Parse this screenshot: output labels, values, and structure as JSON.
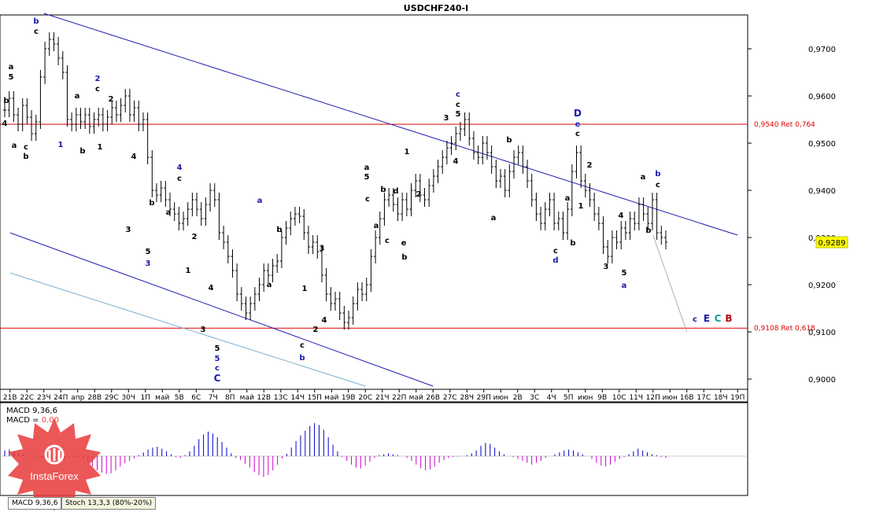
{
  "chart_data": {
    "type": "candlestick",
    "title": "USDCHF240-I",
    "price_axis": {
      "ticks": [
        "0,9700",
        "0,9600",
        "0,9500",
        "0,9400",
        "0,9300",
        "0,9200",
        "0,9100",
        "0,9000"
      ],
      "range": [
        0.898,
        0.977
      ],
      "current_price": "0,9289"
    },
    "time_axis": {
      "labels": [
        "21В",
        "22С",
        "23Ч",
        "24П",
        "апр",
        "28В",
        "29С",
        "30Ч",
        "1П",
        "май",
        "5В",
        "6С",
        "7Ч",
        "8П",
        "май",
        "12В",
        "13С",
        "14Ч",
        "15П",
        "май",
        "19В",
        "20С",
        "21Ч",
        "22П",
        "май",
        "26В",
        "27С",
        "28Ч",
        "29П",
        "июн",
        "2В",
        "3С",
        "4Ч",
        "5П",
        "июн",
        "9В",
        "10С",
        "11Ч",
        "12П",
        "июн",
        "16В",
        "17С",
        "18Ч",
        "19П"
      ]
    },
    "levels": [
      {
        "price": 0.954,
        "label": "0,9540 Ret 0,764",
        "color": "#dd0000"
      },
      {
        "price": 0.9108,
        "label": "0,9108 Ret 0,618",
        "color": "#dd0000"
      }
    ],
    "series": [
      {
        "values": [
          0.957,
          0.9595,
          0.956,
          0.954,
          0.958,
          0.9555,
          0.952,
          0.9545,
          0.964,
          0.97,
          0.972,
          0.971,
          0.968,
          0.965,
          0.955,
          0.954,
          0.956,
          0.9545,
          0.956,
          0.9535,
          0.955,
          0.956,
          0.954,
          0.9555,
          0.9575,
          0.956,
          0.958,
          0.96,
          0.956,
          0.9575,
          0.954,
          0.955,
          0.947,
          0.94,
          0.939,
          0.9405,
          0.938,
          0.936,
          0.935,
          0.933,
          0.934,
          0.936,
          0.938,
          0.936,
          0.934,
          0.937,
          0.94,
          0.938,
          0.931,
          0.929,
          0.926,
          0.923,
          0.918,
          0.916,
          0.914,
          0.916,
          0.918,
          0.92,
          0.923,
          0.922,
          0.924,
          0.925,
          0.93,
          0.932,
          0.934,
          0.935,
          0.9345,
          0.931,
          0.928,
          0.929,
          0.927,
          0.922,
          0.918,
          0.916,
          0.917,
          0.914,
          0.912,
          0.913,
          0.916,
          0.919,
          0.918,
          0.92,
          0.926,
          0.93,
          0.934,
          0.938,
          0.939,
          0.937,
          0.935,
          0.938,
          0.936,
          0.94,
          0.942,
          0.939,
          0.938,
          0.941,
          0.943,
          0.945,
          0.947,
          0.949,
          0.95,
          0.952,
          0.953,
          0.955,
          0.951,
          0.948,
          0.947,
          0.95,
          0.948,
          0.945,
          0.942,
          0.943,
          0.94,
          0.944,
          0.947,
          0.948,
          0.945,
          0.942,
          0.938,
          0.935,
          0.933,
          0.936,
          0.938,
          0.933,
          0.934,
          0.931,
          0.936,
          0.944,
          0.948,
          0.942,
          0.94,
          0.938,
          0.935,
          0.933,
          0.928,
          0.926,
          0.93,
          0.929,
          0.932,
          0.931,
          0.934,
          0.933,
          0.937,
          0.935,
          0.933,
          0.938,
          0.931,
          0.93,
          0.929
        ]
      }
    ],
    "trend_lines": [
      {
        "name": "channel-upper",
        "from": [
          "23Ч",
          0.9775
        ],
        "to": [
          "19П",
          0.9305
        ],
        "color": "#2020b0"
      },
      {
        "name": "channel-lower",
        "from": [
          "21В",
          0.931
        ],
        "to": [
          "26В",
          0.8985
        ],
        "color": "#2020b0"
      },
      {
        "name": "channel-base",
        "from": [
          "21В",
          0.9225
        ],
        "to": [
          "20С",
          0.8985
        ],
        "color": "#7fb0d0"
      },
      {
        "name": "projection",
        "from": [
          "12П",
          0.9305
        ],
        "to": [
          "16В",
          0.91
        ],
        "color": "#b0b0b0"
      }
    ],
    "wave_labels": [
      {
        "text": "b",
        "x": 46,
        "y": 30,
        "color": "#1a1aa8"
      },
      {
        "text": "c",
        "x": 46,
        "y": 43,
        "color": "#000000"
      },
      {
        "text": "a",
        "x": 14,
        "y": 88,
        "color": "#000000"
      },
      {
        "text": "5",
        "x": 14,
        "y": 101,
        "color": "#000000"
      },
      {
        "text": "b",
        "x": 8,
        "y": 131,
        "color": "#000000"
      },
      {
        "text": "4",
        "x": 6,
        "y": 160,
        "color": "#000000"
      },
      {
        "text": "a",
        "x": 18,
        "y": 188,
        "color": "#000000"
      },
      {
        "text": "c",
        "x": 33,
        "y": 190,
        "color": "#000000"
      },
      {
        "text": "b",
        "x": 33,
        "y": 202,
        "color": "#000000"
      },
      {
        "text": "2",
        "x": 124,
        "y": 103,
        "color": "#1a1aa8"
      },
      {
        "text": "a",
        "x": 98,
        "y": 125,
        "color": "#000000"
      },
      {
        "text": "c",
        "x": 124,
        "y": 116,
        "color": "#000000"
      },
      {
        "text": "2",
        "x": 141,
        "y": 129,
        "color": "#000000"
      },
      {
        "text": "1",
        "x": 77,
        "y": 187,
        "color": "#1a1aa8"
      },
      {
        "text": "b",
        "x": 105,
        "y": 195,
        "color": "#000000"
      },
      {
        "text": "1",
        "x": 127,
        "y": 190,
        "color": "#000000"
      },
      {
        "text": "4",
        "x": 170,
        "y": 202,
        "color": "#000000"
      },
      {
        "text": "4",
        "x": 228,
        "y": 216,
        "color": "#1a1aa8"
      },
      {
        "text": "c",
        "x": 228,
        "y": 230,
        "color": "#000000"
      },
      {
        "text": "b",
        "x": 193,
        "y": 261,
        "color": "#000000"
      },
      {
        "text": "a",
        "x": 214,
        "y": 273,
        "color": "#000000"
      },
      {
        "text": "3",
        "x": 163,
        "y": 295,
        "color": "#000000"
      },
      {
        "text": "5",
        "x": 188,
        "y": 323,
        "color": "#000000"
      },
      {
        "text": "3",
        "x": 188,
        "y": 338,
        "color": "#1a1aa8"
      },
      {
        "text": "2",
        "x": 247,
        "y": 304,
        "color": "#000000"
      },
      {
        "text": "1",
        "x": 239,
        "y": 347,
        "color": "#000000"
      },
      {
        "text": "4",
        "x": 268,
        "y": 369,
        "color": "#000000"
      },
      {
        "text": "3",
        "x": 258,
        "y": 422,
        "color": "#000000"
      },
      {
        "text": "5",
        "x": 276,
        "y": 446,
        "color": "#000000"
      },
      {
        "text": "5",
        "x": 276,
        "y": 459,
        "color": "#1a1aa8"
      },
      {
        "text": "c",
        "x": 276,
        "y": 471,
        "color": "#1a1aa8"
      },
      {
        "text": "C",
        "x": 276,
        "y": 485,
        "color": "#1a1aa8"
      },
      {
        "text": "a",
        "x": 330,
        "y": 258,
        "color": "#1a1aa8"
      },
      {
        "text": "b",
        "x": 355,
        "y": 295,
        "color": "#000000"
      },
      {
        "text": "a",
        "x": 342,
        "y": 365,
        "color": "#000000"
      },
      {
        "text": "1",
        "x": 387,
        "y": 370,
        "color": "#000000"
      },
      {
        "text": "3",
        "x": 409,
        "y": 319,
        "color": "#000000"
      },
      {
        "text": "4",
        "x": 412,
        "y": 410,
        "color": "#000000"
      },
      {
        "text": "2",
        "x": 401,
        "y": 422,
        "color": "#000000"
      },
      {
        "text": "c",
        "x": 384,
        "y": 442,
        "color": "#000000"
      },
      {
        "text": "b",
        "x": 384,
        "y": 458,
        "color": "#1a1aa8"
      },
      {
        "text": "a",
        "x": 466,
        "y": 216,
        "color": "#000000"
      },
      {
        "text": "5",
        "x": 466,
        "y": 228,
        "color": "#000000"
      },
      {
        "text": "c",
        "x": 467,
        "y": 256,
        "color": "#000000"
      },
      {
        "text": "a",
        "x": 478,
        "y": 290,
        "color": "#000000"
      },
      {
        "text": "b",
        "x": 487,
        "y": 244,
        "color": "#000000"
      },
      {
        "text": "c",
        "x": 492,
        "y": 309,
        "color": "#000000"
      },
      {
        "text": "d",
        "x": 503,
        "y": 246,
        "color": "#000000"
      },
      {
        "text": "1",
        "x": 517,
        "y": 196,
        "color": "#000000"
      },
      {
        "text": "2",
        "x": 532,
        "y": 250,
        "color": "#000000"
      },
      {
        "text": "e",
        "x": 513,
        "y": 312,
        "color": "#000000"
      },
      {
        "text": "b",
        "x": 514,
        "y": 330,
        "color": "#000000"
      },
      {
        "text": "c",
        "x": 582,
        "y": 123,
        "color": "#1a1aa8"
      },
      {
        "text": "c",
        "x": 582,
        "y": 136,
        "color": "#000000"
      },
      {
        "text": "5",
        "x": 582,
        "y": 148,
        "color": "#000000"
      },
      {
        "text": "3",
        "x": 567,
        "y": 153,
        "color": "#000000"
      },
      {
        "text": "4",
        "x": 579,
        "y": 208,
        "color": "#000000"
      },
      {
        "text": "b",
        "x": 647,
        "y": 181,
        "color": "#000000"
      },
      {
        "text": "a",
        "x": 627,
        "y": 280,
        "color": "#000000"
      },
      {
        "text": "D",
        "x": 734,
        "y": 148,
        "color": "#1a1aa8"
      },
      {
        "text": "e",
        "x": 734,
        "y": 161,
        "color": "#1a1aa8"
      },
      {
        "text": "c",
        "x": 734,
        "y": 173,
        "color": "#000000"
      },
      {
        "text": "2",
        "x": 749,
        "y": 213,
        "color": "#000000"
      },
      {
        "text": "1",
        "x": 738,
        "y": 265,
        "color": "#000000"
      },
      {
        "text": "a",
        "x": 721,
        "y": 255,
        "color": "#000000"
      },
      {
        "text": "b",
        "x": 728,
        "y": 312,
        "color": "#000000"
      },
      {
        "text": "c",
        "x": 706,
        "y": 322,
        "color": "#000000"
      },
      {
        "text": "d",
        "x": 706,
        "y": 334,
        "color": "#1a1aa8"
      },
      {
        "text": "b",
        "x": 836,
        "y": 224,
        "color": "#1a1aa8"
      },
      {
        "text": "a",
        "x": 817,
        "y": 228,
        "color": "#000000"
      },
      {
        "text": "c",
        "x": 836,
        "y": 238,
        "color": "#000000"
      },
      {
        "text": "4",
        "x": 789,
        "y": 277,
        "color": "#000000"
      },
      {
        "text": "b",
        "x": 824,
        "y": 296,
        "color": "#000000"
      },
      {
        "text": "3",
        "x": 770,
        "y": 342,
        "color": "#000000"
      },
      {
        "text": "5",
        "x": 793,
        "y": 350,
        "color": "#000000"
      },
      {
        "text": "a",
        "x": 793,
        "y": 366,
        "color": "#1a1aa8"
      },
      {
        "text": "c",
        "x": 883,
        "y": 409,
        "color": "#1a1aa8"
      },
      {
        "text": "E",
        "x": 898,
        "y": 409,
        "color": "#1a1aa8"
      },
      {
        "text": "C",
        "x": 912,
        "y": 409,
        "color": "#10a0a0"
      },
      {
        "text": "B",
        "x": 926,
        "y": 409,
        "color": "#b01010"
      }
    ],
    "macd": {
      "label": "MACD 9,36,6",
      "value_label": "MACD = ",
      "value": "0,00",
      "values": [
        0.12,
        0.14,
        0.1,
        0.06,
        0.04,
        0.02,
        0.0,
        -0.02,
        -0.04,
        -0.05,
        -0.06,
        -0.07,
        -0.08,
        -0.06,
        -0.04,
        -0.03,
        -0.02,
        -0.05,
        -0.12,
        -0.22,
        -0.3,
        -0.35,
        -0.38,
        -0.36,
        -0.3,
        -0.22,
        -0.15,
        -0.1,
        -0.05,
        0.02,
        0.08,
        0.14,
        0.18,
        0.2,
        0.16,
        0.1,
        0.04,
        -0.02,
        -0.04,
        0.02,
        0.1,
        0.22,
        0.36,
        0.46,
        0.52,
        0.48,
        0.4,
        0.3,
        0.18,
        0.06,
        -0.04,
        -0.08,
        -0.16,
        -0.24,
        -0.34,
        -0.4,
        -0.44,
        -0.4,
        -0.3,
        -0.18,
        -0.05,
        0.05,
        0.18,
        0.32,
        0.44,
        0.54,
        0.64,
        0.7,
        0.66,
        0.56,
        0.4,
        0.24,
        0.1,
        -0.02,
        -0.1,
        -0.18,
        -0.24,
        -0.26,
        -0.2,
        -0.12,
        -0.04,
        0.02,
        0.04,
        0.06,
        0.04,
        0.02,
        0.0,
        -0.04,
        -0.1,
        -0.18,
        -0.26,
        -0.3,
        -0.28,
        -0.22,
        -0.14,
        -0.08,
        -0.04,
        -0.02,
        -0.01,
        0.0,
        0.02,
        0.06,
        0.12,
        0.22,
        0.28,
        0.26,
        0.18,
        0.1,
        0.04,
        0.0,
        -0.02,
        -0.06,
        -0.1,
        -0.14,
        -0.18,
        -0.14,
        -0.1,
        -0.04,
        0.0,
        0.04,
        0.08,
        0.12,
        0.14,
        0.12,
        0.08,
        0.04,
        0.0,
        -0.06,
        -0.14,
        -0.2,
        -0.22,
        -0.18,
        -0.12,
        -0.06,
        -0.02,
        0.04,
        0.1,
        0.16,
        0.12,
        0.08,
        0.04,
        0.02,
        -0.02,
        -0.04
      ],
      "positive_color": "#0000cc",
      "negative_color": "#cc00cc"
    },
    "tabs": [
      "MACD 9,36,6",
      "Stoch 13,3,3 (80%-20%)"
    ],
    "watermark": "InstaForex"
  }
}
